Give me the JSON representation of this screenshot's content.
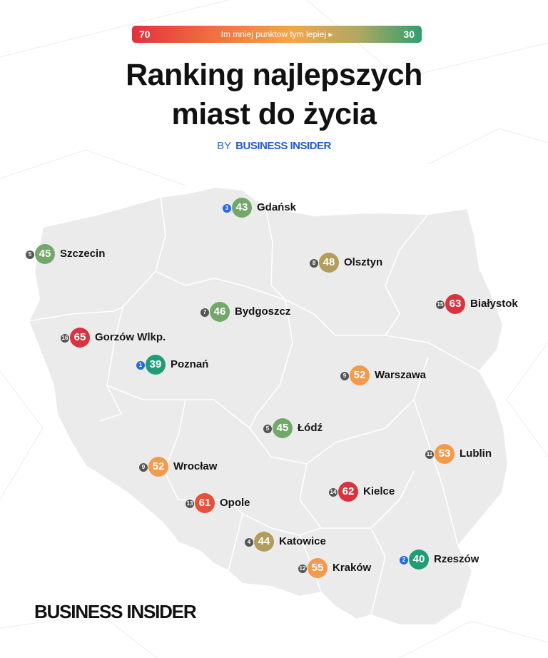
{
  "header": {
    "scale_min": "70",
    "scale_max": "30",
    "scale_caption": "Im mniej punktow tym lepiej ▸",
    "title_line1": "Ranking najlepszych",
    "title_line2": "miast do życia",
    "by": "BY",
    "brand": "BUSINESS INSIDER"
  },
  "footer": {
    "logo": "BUSINESS INSIDER"
  },
  "colors": {
    "red": "#d9333f",
    "red_orange": "#e8503b",
    "orange": "#f39a4c",
    "olive": "#b19e5a",
    "green": "#74a86a",
    "teal": "#1f9d76",
    "rank_gray": "#555555",
    "rank_blue": "#2268e8"
  },
  "cities": [
    {
      "name": "Gdańsk",
      "score": "43",
      "rank": "3",
      "color": "#74a86a",
      "rank_color": "#2268e8"
    },
    {
      "name": "Szczecin",
      "score": "45",
      "rank": "5",
      "color": "#74a86a",
      "rank_color": "#555555"
    },
    {
      "name": "Olsztyn",
      "score": "48",
      "rank": "8",
      "color": "#b19e5a",
      "rank_color": "#555555"
    },
    {
      "name": "Białystok",
      "score": "63",
      "rank": "15",
      "color": "#d9333f",
      "rank_color": "#555555"
    },
    {
      "name": "Bydgoszcz",
      "score": "46",
      "rank": "7",
      "color": "#74a86a",
      "rank_color": "#555555"
    },
    {
      "name": "Gorzów Wlkp.",
      "score": "65",
      "rank": "16",
      "color": "#d9333f",
      "rank_color": "#555555"
    },
    {
      "name": "Poznań",
      "score": "39",
      "rank": "1",
      "color": "#1f9d76",
      "rank_color": "#2268e8"
    },
    {
      "name": "Warszawa",
      "score": "52",
      "rank": "9",
      "color": "#f39a4c",
      "rank_color": "#555555"
    },
    {
      "name": "Łódź",
      "score": "45",
      "rank": "5",
      "color": "#74a86a",
      "rank_color": "#555555"
    },
    {
      "name": "Lublin",
      "score": "53",
      "rank": "11",
      "color": "#f39a4c",
      "rank_color": "#555555"
    },
    {
      "name": "Wrocław",
      "score": "52",
      "rank": "9",
      "color": "#f39a4c",
      "rank_color": "#555555"
    },
    {
      "name": "Kielce",
      "score": "62",
      "rank": "14",
      "color": "#d9333f",
      "rank_color": "#555555"
    },
    {
      "name": "Opole",
      "score": "61",
      "rank": "13",
      "color": "#e8503b",
      "rank_color": "#555555"
    },
    {
      "name": "Katowice",
      "score": "44",
      "rank": "4",
      "color": "#b19e5a",
      "rank_color": "#555555"
    },
    {
      "name": "Rzeszów",
      "score": "40",
      "rank": "2",
      "color": "#1f9d76",
      "rank_color": "#2268e8"
    },
    {
      "name": "Kraków",
      "score": "55",
      "rank": "12",
      "color": "#f39a4c",
      "rank_color": "#555555"
    }
  ]
}
